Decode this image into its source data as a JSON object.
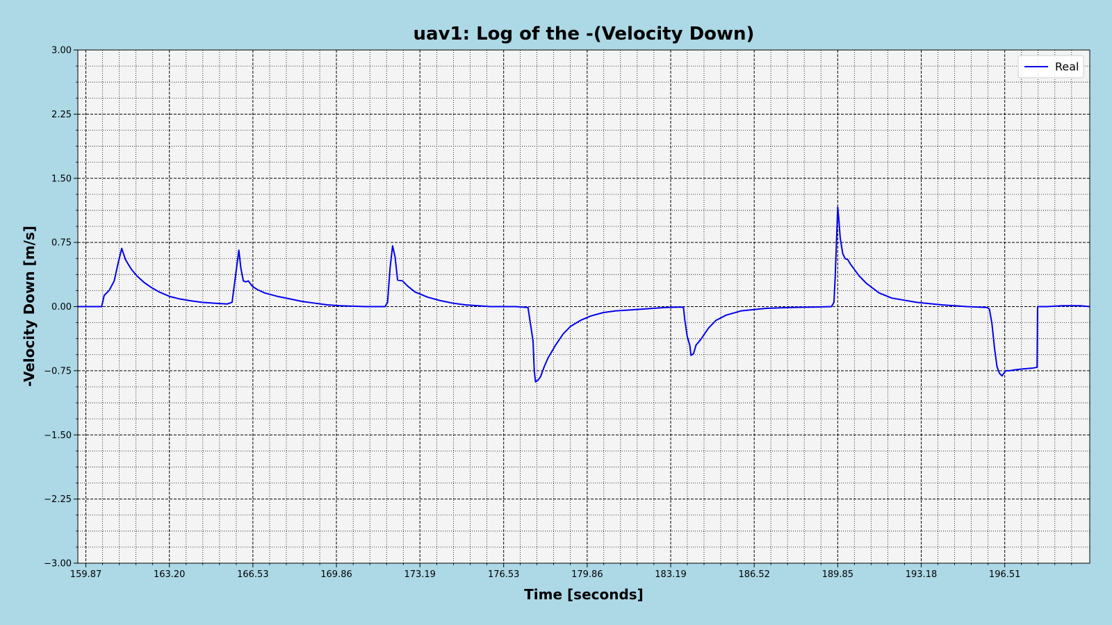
{
  "chart_data": {
    "type": "line",
    "title": "uav1: Log of the -(Velocity Down)",
    "xlabel": "Time [seconds]",
    "ylabel": "-Velocity Down [m/s]",
    "xlim": [
      159.55,
      199.9
    ],
    "ylim": [
      -3.0,
      3.0
    ],
    "x_tick_labels": [
      "159.87",
      "163.20",
      "166.53",
      "169.86",
      "173.19",
      "176.53",
      "179.86",
      "183.19",
      "186.52",
      "189.85",
      "193.18",
      "196.51"
    ],
    "y_tick_labels": [
      "3.00",
      "2.25",
      "1.50",
      "0.75",
      "0.00",
      "−0.75",
      "−1.50",
      "−2.25",
      "−3.00"
    ],
    "grid": true,
    "legend_position": "top-right",
    "series": [
      {
        "name": "Real",
        "color": "#0000ee",
        "x": [
          159.55,
          160.3,
          160.5,
          160.6,
          160.8,
          161.0,
          161.15,
          161.3,
          161.45,
          161.55,
          161.7,
          161.9,
          162.2,
          162.5,
          162.8,
          163.2,
          163.6,
          164.0,
          164.5,
          165.0,
          165.5,
          165.7,
          165.9,
          165.97,
          166.05,
          166.15,
          166.25,
          166.35,
          166.5,
          166.7,
          167.0,
          167.5,
          168.0,
          168.5,
          169.0,
          169.5,
          170.0,
          171.0,
          171.8,
          171.9,
          172.0,
          172.1,
          172.2,
          172.3,
          172.5,
          172.7,
          173.0,
          173.5,
          174.0,
          174.5,
          175.0,
          176.0,
          177.0,
          177.5,
          177.7,
          177.75,
          177.8,
          177.9,
          178.0,
          178.15,
          178.3,
          178.6,
          178.9,
          179.2,
          179.6,
          180.0,
          180.5,
          181.0,
          182.0,
          183.0,
          183.6,
          183.7,
          183.75,
          183.85,
          183.95,
          184.0,
          184.1,
          184.2,
          184.4,
          184.7,
          185.0,
          185.4,
          186.0,
          187.0,
          188.0,
          189.0,
          189.6,
          189.7,
          189.75,
          189.8,
          189.85,
          189.9,
          189.95,
          190.05,
          190.15,
          190.25,
          190.35,
          190.5,
          190.7,
          191.0,
          191.5,
          192.0,
          193.0,
          194.0,
          195.0,
          195.8,
          195.9,
          196.0,
          196.1,
          196.2,
          196.3,
          196.4,
          196.5,
          196.55,
          196.6,
          196.7,
          196.9,
          197.2,
          197.6,
          197.8,
          197.82,
          198.2,
          198.8,
          199.5,
          199.9
        ],
        "y": [
          0.0,
          0.0,
          0.0,
          0.13,
          0.19,
          0.3,
          0.5,
          0.68,
          0.55,
          0.5,
          0.43,
          0.36,
          0.28,
          0.22,
          0.17,
          0.12,
          0.09,
          0.07,
          0.05,
          0.04,
          0.03,
          0.05,
          0.5,
          0.66,
          0.45,
          0.3,
          0.29,
          0.3,
          0.24,
          0.2,
          0.16,
          0.12,
          0.09,
          0.06,
          0.04,
          0.02,
          0.01,
          0.0,
          0.0,
          0.05,
          0.45,
          0.71,
          0.58,
          0.31,
          0.3,
          0.24,
          0.17,
          0.11,
          0.07,
          0.04,
          0.02,
          0.0,
          0.0,
          -0.01,
          -0.4,
          -0.75,
          -0.88,
          -0.86,
          -0.82,
          -0.7,
          -0.6,
          -0.45,
          -0.32,
          -0.23,
          -0.16,
          -0.11,
          -0.07,
          -0.05,
          -0.03,
          -0.01,
          -0.005,
          -0.01,
          -0.15,
          -0.35,
          -0.45,
          -0.57,
          -0.55,
          -0.45,
          -0.38,
          -0.25,
          -0.16,
          -0.1,
          -0.05,
          -0.02,
          -0.01,
          -0.005,
          0.0,
          0.05,
          0.35,
          0.75,
          1.16,
          1.0,
          0.8,
          0.62,
          0.56,
          0.55,
          0.5,
          0.44,
          0.36,
          0.27,
          0.16,
          0.1,
          0.05,
          0.02,
          0.0,
          -0.01,
          -0.03,
          -0.2,
          -0.48,
          -0.7,
          -0.78,
          -0.81,
          -0.77,
          -0.75,
          -0.75,
          -0.75,
          -0.74,
          -0.73,
          -0.72,
          -0.71,
          0.0,
          0.0,
          0.01,
          0.01,
          0.0
        ]
      }
    ]
  }
}
